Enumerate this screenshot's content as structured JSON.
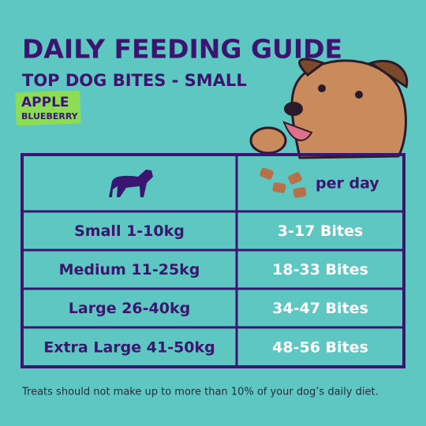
{
  "header": {
    "title": "DAILY FEEDING GUIDE",
    "subtitle": "TOP DOG BITES - SMALL",
    "badge": [
      "APPLE",
      "BLUEBERRY"
    ]
  },
  "table": {
    "header": "per day",
    "rows": [
      [
        "Small 1-10kg",
        "3-17 Bites"
      ],
      [
        "Medium 11-25kg",
        "18-33 Bites"
      ],
      [
        "Large 26-40kg",
        "34-47 Bites"
      ],
      [
        "Extra Large 41-50kg",
        "48-56 Bites"
      ]
    ]
  },
  "footnote": "Treats should not make up to more than 10% of your dog’s daily diet."
}
